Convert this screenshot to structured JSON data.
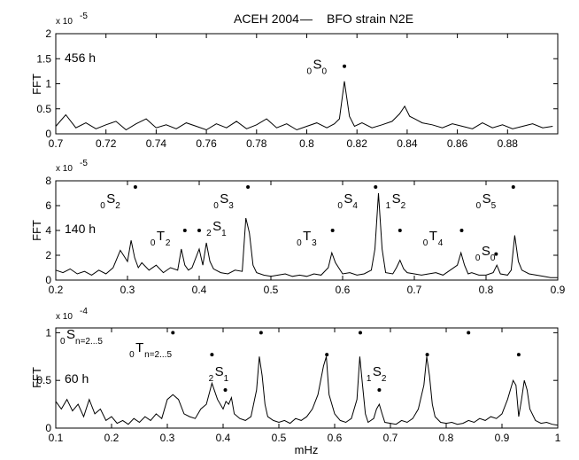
{
  "title": "ACEH 2004",
  "legend": {
    "dash": "—",
    "label": "BFO strain N2E"
  },
  "xlabel": "mHz",
  "colors": {
    "line": "#000000",
    "axis": "#000000",
    "background": "#ffffff"
  },
  "chart_data": [
    {
      "type": "line",
      "duration_label": "456 h",
      "ylabel": "FFT",
      "exponent_base": "x 10",
      "exponent_power": "-5",
      "xlim": [
        0.7,
        0.9
      ],
      "ylim": [
        0,
        2
      ],
      "x_ticks": [
        0.7,
        0.72,
        0.74,
        0.76,
        0.78,
        0.8,
        0.82,
        0.84,
        0.86,
        0.88
      ],
      "x_tick_labels": [
        "0.7",
        "0.72",
        "0.74",
        "0.76",
        "0.78",
        "0.8",
        "0.82",
        "0.84",
        "0.86",
        "0.88"
      ],
      "y_ticks": [
        0,
        0.5,
        1,
        1.5,
        2
      ],
      "y_tick_labels": [
        "0",
        "0.5",
        "1",
        "1.5",
        "2"
      ],
      "series": [
        {
          "x": [
            0.7,
            0.704,
            0.708,
            0.712,
            0.716,
            0.72,
            0.724,
            0.728,
            0.732,
            0.736,
            0.74,
            0.744,
            0.748,
            0.752,
            0.756,
            0.76,
            0.764,
            0.768,
            0.772,
            0.776,
            0.78,
            0.784,
            0.788,
            0.792,
            0.796,
            0.8,
            0.804,
            0.808,
            0.811,
            0.813,
            0.815,
            0.817,
            0.819,
            0.822,
            0.826,
            0.83,
            0.834,
            0.837,
            0.839,
            0.841,
            0.843,
            0.846,
            0.85,
            0.854,
            0.858,
            0.862,
            0.866,
            0.87,
            0.874,
            0.878,
            0.882,
            0.886,
            0.89,
            0.894,
            0.898
          ],
          "y": [
            0.15,
            0.38,
            0.12,
            0.22,
            0.1,
            0.18,
            0.25,
            0.08,
            0.2,
            0.3,
            0.12,
            0.18,
            0.1,
            0.22,
            0.15,
            0.08,
            0.2,
            0.12,
            0.25,
            0.1,
            0.18,
            0.3,
            0.12,
            0.2,
            0.08,
            0.15,
            0.22,
            0.12,
            0.2,
            0.3,
            1.05,
            0.35,
            0.15,
            0.22,
            0.12,
            0.18,
            0.25,
            0.4,
            0.55,
            0.35,
            0.3,
            0.22,
            0.18,
            0.12,
            0.2,
            0.15,
            0.1,
            0.22,
            0.12,
            0.18,
            0.1,
            0.15,
            0.2,
            0.12,
            0.15
          ]
        }
      ],
      "markers": [
        {
          "x": 0.815,
          "y": 1.35
        }
      ],
      "mode_labels": [
        {
          "pre": "0",
          "main": "S",
          "sub": "0",
          "x": 0.8,
          "y": 1.3
        }
      ],
      "tick_format": [
        2,
        1
      ]
    },
    {
      "type": "line",
      "duration_label": "140 h",
      "ylabel": "FFT",
      "exponent_base": "x 10",
      "exponent_power": "-5",
      "xlim": [
        0.2,
        0.9
      ],
      "ylim": [
        0,
        8
      ],
      "x_ticks": [
        0.2,
        0.3,
        0.4,
        0.5,
        0.6,
        0.7,
        0.8,
        0.9
      ],
      "x_tick_labels": [
        "0.2",
        "0.3",
        "0.4",
        "0.5",
        "0.6",
        "0.7",
        "0.8",
        "0.9"
      ],
      "y_ticks": [
        0,
        2,
        4,
        6,
        8
      ],
      "y_tick_labels": [
        "0",
        "2",
        "4",
        "6",
        "8"
      ],
      "series": [
        {
          "x": [
            0.2,
            0.21,
            0.22,
            0.23,
            0.24,
            0.25,
            0.26,
            0.27,
            0.28,
            0.29,
            0.3,
            0.305,
            0.31,
            0.315,
            0.32,
            0.33,
            0.34,
            0.35,
            0.36,
            0.37,
            0.375,
            0.38,
            0.385,
            0.39,
            0.4,
            0.405,
            0.41,
            0.415,
            0.42,
            0.43,
            0.44,
            0.45,
            0.46,
            0.465,
            0.47,
            0.475,
            0.48,
            0.49,
            0.5,
            0.51,
            0.52,
            0.53,
            0.54,
            0.55,
            0.56,
            0.57,
            0.58,
            0.585,
            0.59,
            0.6,
            0.61,
            0.62,
            0.63,
            0.64,
            0.645,
            0.65,
            0.655,
            0.66,
            0.67,
            0.675,
            0.68,
            0.685,
            0.69,
            0.7,
            0.71,
            0.72,
            0.73,
            0.74,
            0.75,
            0.76,
            0.765,
            0.77,
            0.775,
            0.78,
            0.79,
            0.8,
            0.81,
            0.815,
            0.82,
            0.83,
            0.835,
            0.84,
            0.845,
            0.85,
            0.86,
            0.87,
            0.88,
            0.89,
            0.9
          ],
          "y": [
            0.8,
            0.6,
            0.9,
            0.5,
            0.7,
            0.4,
            0.8,
            0.5,
            1.0,
            2.4,
            1.5,
            3.2,
            1.8,
            1.0,
            1.4,
            0.8,
            1.2,
            0.6,
            1.0,
            0.8,
            2.5,
            1.2,
            0.8,
            1.0,
            2.5,
            1.2,
            3.0,
            1.5,
            0.9,
            0.6,
            0.5,
            0.8,
            0.7,
            5.0,
            3.8,
            1.2,
            0.6,
            0.4,
            0.3,
            0.4,
            0.5,
            0.3,
            0.4,
            0.3,
            0.5,
            0.4,
            1.0,
            2.2,
            1.4,
            0.5,
            0.6,
            0.4,
            0.5,
            0.8,
            2.5,
            7.0,
            2.5,
            0.6,
            0.5,
            1.0,
            1.6,
            0.9,
            0.6,
            0.5,
            0.4,
            0.5,
            0.6,
            0.4,
            0.8,
            1.2,
            2.2,
            1.2,
            0.5,
            0.6,
            0.4,
            0.4,
            0.6,
            1.2,
            0.5,
            0.4,
            0.8,
            3.6,
            1.5,
            0.8,
            0.5,
            0.4,
            0.3,
            0.2,
            0.2
          ]
        }
      ],
      "markers": [
        {
          "x": 0.311,
          "y": 7.5
        },
        {
          "x": 0.468,
          "y": 7.5
        },
        {
          "x": 0.646,
          "y": 7.5
        },
        {
          "x": 0.838,
          "y": 7.5
        },
        {
          "x": 0.38,
          "y": 4.0
        },
        {
          "x": 0.4,
          "y": 4.0
        },
        {
          "x": 0.586,
          "y": 4.0
        },
        {
          "x": 0.68,
          "y": 4.0
        },
        {
          "x": 0.766,
          "y": 4.0
        },
        {
          "x": 0.814,
          "y": 2.1
        }
      ],
      "mode_labels": [
        {
          "pre": "0",
          "main": "S",
          "sub": "2",
          "x": 0.262,
          "y": 6.2
        },
        {
          "pre": "0",
          "main": "S",
          "sub": "3",
          "x": 0.42,
          "y": 6.2
        },
        {
          "pre": "0",
          "main": "S",
          "sub": "4",
          "x": 0.593,
          "y": 6.2
        },
        {
          "pre": "1",
          "main": "S",
          "sub": "2",
          "x": 0.66,
          "y": 6.2
        },
        {
          "pre": "0",
          "main": "S",
          "sub": "5",
          "x": 0.786,
          "y": 6.2
        },
        {
          "pre": "0",
          "main": "T",
          "sub": "2",
          "x": 0.332,
          "y": 3.2
        },
        {
          "pre": "2",
          "main": "S",
          "sub": "1",
          "x": 0.41,
          "y": 4.0
        },
        {
          "pre": "0",
          "main": "T",
          "sub": "3",
          "x": 0.536,
          "y": 3.2
        },
        {
          "pre": "0",
          "main": "T",
          "sub": "4",
          "x": 0.712,
          "y": 3.2
        },
        {
          "pre": "0",
          "main": "S",
          "sub": "0",
          "x": 0.785,
          "y": 2.0
        }
      ],
      "tick_format": [
        1,
        0
      ]
    },
    {
      "type": "line",
      "duration_label": "60 h",
      "ylabel": "FFT",
      "exponent_base": "x 10",
      "exponent_power": "-4",
      "xlim": [
        0.1,
        1.0
      ],
      "ylim": [
        0,
        1.05
      ],
      "x_ticks": [
        0.1,
        0.2,
        0.3,
        0.4,
        0.5,
        0.6,
        0.7,
        0.8,
        0.9,
        1.0
      ],
      "x_tick_labels": [
        "0.1",
        "0.2",
        "0.3",
        "0.4",
        "0.5",
        "0.6",
        "0.7",
        "0.8",
        "0.9",
        "1"
      ],
      "y_ticks": [
        0,
        0.5,
        1
      ],
      "y_tick_labels": [
        "0",
        "0.5",
        "1"
      ],
      "series": [
        {
          "x": [
            0.1,
            0.11,
            0.12,
            0.13,
            0.14,
            0.15,
            0.16,
            0.17,
            0.18,
            0.19,
            0.2,
            0.21,
            0.22,
            0.23,
            0.24,
            0.25,
            0.26,
            0.27,
            0.28,
            0.29,
            0.3,
            0.31,
            0.32,
            0.33,
            0.34,
            0.35,
            0.36,
            0.37,
            0.38,
            0.39,
            0.4,
            0.405,
            0.41,
            0.415,
            0.42,
            0.43,
            0.44,
            0.45,
            0.46,
            0.465,
            0.47,
            0.475,
            0.48,
            0.49,
            0.5,
            0.51,
            0.52,
            0.53,
            0.54,
            0.55,
            0.56,
            0.57,
            0.58,
            0.585,
            0.59,
            0.6,
            0.61,
            0.62,
            0.63,
            0.64,
            0.645,
            0.65,
            0.655,
            0.66,
            0.67,
            0.675,
            0.68,
            0.685,
            0.69,
            0.7,
            0.71,
            0.72,
            0.73,
            0.74,
            0.75,
            0.76,
            0.765,
            0.77,
            0.775,
            0.78,
            0.79,
            0.8,
            0.81,
            0.82,
            0.83,
            0.84,
            0.85,
            0.86,
            0.87,
            0.88,
            0.89,
            0.9,
            0.91,
            0.92,
            0.925,
            0.93,
            0.935,
            0.94,
            0.945,
            0.95,
            0.96,
            0.97,
            0.98,
            0.99,
            1.0
          ],
          "y": [
            0.28,
            0.2,
            0.3,
            0.18,
            0.25,
            0.12,
            0.3,
            0.15,
            0.2,
            0.08,
            0.12,
            0.05,
            0.08,
            0.04,
            0.1,
            0.06,
            0.12,
            0.08,
            0.15,
            0.1,
            0.3,
            0.35,
            0.3,
            0.15,
            0.12,
            0.1,
            0.2,
            0.25,
            0.47,
            0.3,
            0.2,
            0.28,
            0.25,
            0.32,
            0.15,
            0.1,
            0.08,
            0.12,
            0.4,
            0.75,
            0.55,
            0.25,
            0.12,
            0.08,
            0.06,
            0.08,
            0.05,
            0.1,
            0.08,
            0.12,
            0.2,
            0.35,
            0.65,
            0.75,
            0.35,
            0.15,
            0.08,
            0.06,
            0.1,
            0.3,
            0.75,
            0.45,
            0.15,
            0.06,
            0.1,
            0.2,
            0.25,
            0.15,
            0.06,
            0.05,
            0.04,
            0.08,
            0.06,
            0.1,
            0.2,
            0.45,
            0.75,
            0.55,
            0.25,
            0.12,
            0.06,
            0.05,
            0.06,
            0.04,
            0.05,
            0.08,
            0.06,
            0.1,
            0.08,
            0.12,
            0.1,
            0.15,
            0.3,
            0.5,
            0.45,
            0.12,
            0.3,
            0.5,
            0.4,
            0.2,
            0.08,
            0.05,
            0.06,
            0.04,
            0.03
          ]
        }
      ],
      "markers": [
        {
          "x": 0.31,
          "y": 1.0
        },
        {
          "x": 0.468,
          "y": 1.0
        },
        {
          "x": 0.646,
          "y": 1.0
        },
        {
          "x": 0.84,
          "y": 1.0
        },
        {
          "x": 0.38,
          "y": 0.77
        },
        {
          "x": 0.586,
          "y": 0.77
        },
        {
          "x": 0.766,
          "y": 0.77
        },
        {
          "x": 0.93,
          "y": 0.77
        },
        {
          "x": 0.404,
          "y": 0.4
        },
        {
          "x": 0.68,
          "y": 0.4
        }
      ],
      "mode_labels": [
        {
          "pre": "0",
          "main": "S",
          "sub": "n=2...5",
          "x": 0.108,
          "y": 0.94
        },
        {
          "pre": "0",
          "main": "T",
          "sub": "n=2...5",
          "x": 0.232,
          "y": 0.8
        },
        {
          "pre": "2",
          "main": "S",
          "sub": "1",
          "x": 0.374,
          "y": 0.55
        },
        {
          "pre": "1",
          "main": "S",
          "sub": "2",
          "x": 0.657,
          "y": 0.55
        }
      ],
      "tick_format": [
        1,
        1
      ]
    }
  ]
}
